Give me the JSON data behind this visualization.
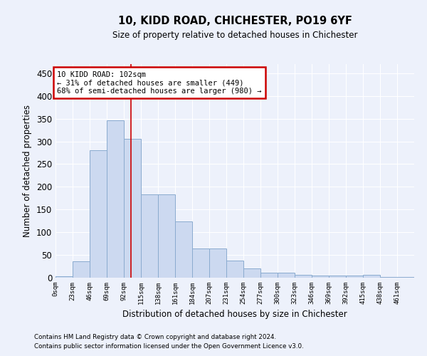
{
  "title": "10, KIDD ROAD, CHICHESTER, PO19 6YF",
  "subtitle": "Size of property relative to detached houses in Chichester",
  "xlabel": "Distribution of detached houses by size in Chichester",
  "ylabel": "Number of detached properties",
  "bar_color": "#ccd9f0",
  "bar_edge_color": "#8aabcf",
  "background_color": "#edf1fb",
  "grid_color": "#ffffff",
  "bin_labels": [
    "0sqm",
    "23sqm",
    "46sqm",
    "69sqm",
    "92sqm",
    "115sqm",
    "138sqm",
    "161sqm",
    "184sqm",
    "207sqm",
    "231sqm",
    "254sqm",
    "277sqm",
    "300sqm",
    "323sqm",
    "346sqm",
    "369sqm",
    "392sqm",
    "415sqm",
    "438sqm",
    "461sqm"
  ],
  "bar_values": [
    3,
    36,
    280,
    347,
    305,
    184,
    184,
    123,
    65,
    65,
    38,
    20,
    11,
    11,
    6,
    4,
    4,
    4,
    6,
    2,
    1
  ],
  "ylim": [
    0,
    470
  ],
  "yticks": [
    0,
    50,
    100,
    150,
    200,
    250,
    300,
    350,
    400,
    450
  ],
  "property_line_x": 102,
  "annotation_line1": "10 KIDD ROAD: 102sqm",
  "annotation_line2": "← 31% of detached houses are smaller (449)",
  "annotation_line3": "68% of semi-detached houses are larger (980) →",
  "annotation_box_color": "#ffffff",
  "annotation_box_edge_color": "#cc0000",
  "footer_line1": "Contains HM Land Registry data © Crown copyright and database right 2024.",
  "footer_line2": "Contains public sector information licensed under the Open Government Licence v3.0.",
  "bin_width": 23
}
